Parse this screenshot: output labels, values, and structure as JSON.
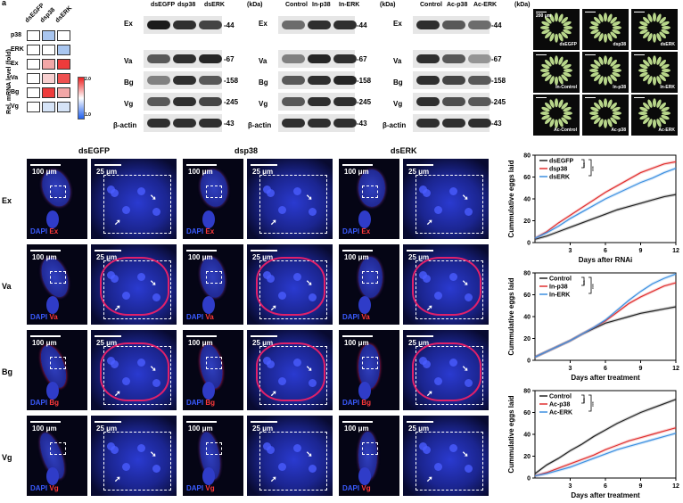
{
  "panel_letter": "a",
  "heatmap": {
    "columns": [
      "dsEGFP",
      "dsp38",
      "dsERK"
    ],
    "rows": [
      "p38",
      "ERK",
      "Ex",
      "Va",
      "Bg",
      "Vg"
    ],
    "ylabel": "Rel. mRNA level (fold)",
    "colorbar_ticks": [
      "2.0",
      "1.0"
    ],
    "colors": {
      "p38": [
        "#ffffff",
        "#a9c6f0",
        "#ffffff"
      ],
      "ERK": [
        "#ffffff",
        "#ffffff",
        "#a9c6f0"
      ],
      "Ex": [
        "#ffffff",
        "#f2a7a7",
        "#ee3b3b"
      ],
      "Va": [
        "#ffffff",
        "#f7cfcf",
        "#ee5050"
      ],
      "Bg": [
        "#ffffff",
        "#ee3b3b",
        "#f2a7a7"
      ],
      "Vg": [
        "#ffffff",
        "#d6e4f7",
        "#d6e4f7"
      ]
    }
  },
  "blots": [
    {
      "columns": [
        "dsEGFP",
        "dsp38",
        "dsERK"
      ],
      "rows": [
        "Ex",
        "Va",
        "Bg",
        "Vg",
        "β-actin"
      ],
      "kda_header": "(kDa)",
      "kda": [
        "44",
        "67",
        "158",
        "245",
        "43"
      ]
    },
    {
      "columns": [
        "Control",
        "In-p38",
        "In-ERK"
      ],
      "rows": [
        "Ex",
        "Va",
        "Bg",
        "Vg",
        "β-actin"
      ],
      "kda_header": "(kDa)",
      "kda": [
        "44",
        "67",
        "158",
        "245",
        "43"
      ]
    },
    {
      "columns": [
        "Control",
        "Ac-p38",
        "Ac-ERK"
      ],
      "rows": [
        "Ex",
        "Va",
        "Bg",
        "Vg",
        "β-actin"
      ],
      "kda_header": "(kDa)",
      "kda": [
        "44",
        "67",
        "158",
        "245",
        "43"
      ]
    }
  ],
  "egg_images": {
    "scale": "200 μm",
    "labels": [
      "dsEGFP",
      "dsp38",
      "dsERK",
      "In-Control",
      "In-p38",
      "In-ERK",
      "Ac-Control",
      "Ac-p38",
      "Ac-ERK"
    ]
  },
  "micro": {
    "columns": [
      "dsEGFP",
      "dsp38",
      "dsERK"
    ],
    "rows": [
      "Ex",
      "Va",
      "Bg",
      "Vg"
    ],
    "scale_overview": "100 μm",
    "scale_zoom": "25 μm",
    "stain_dapi": "DAPI",
    "stain_labels": [
      "Ex",
      "Va",
      "Bg",
      "Vg"
    ]
  },
  "chart_data": [
    {
      "type": "line",
      "xlabel": "Days after RNAi",
      "ylabel": "Cummulative eggs laid",
      "xticks": [
        3,
        6,
        9,
        12
      ],
      "yticks": [
        0,
        20,
        40,
        60,
        80
      ],
      "xlim": [
        0,
        12
      ],
      "ylim": [
        0,
        80
      ],
      "significance": [
        "***",
        "***"
      ],
      "x": [
        0,
        1,
        2,
        3,
        4,
        5,
        6,
        7,
        8,
        9,
        10,
        11,
        12
      ],
      "series": [
        {
          "name": "dsEGFP",
          "color": "#222222",
          "values": [
            3,
            6,
            10,
            14,
            18,
            22,
            26,
            30,
            33,
            36,
            39,
            42,
            44
          ]
        },
        {
          "name": "dsp38",
          "color": "#e03030",
          "values": [
            4,
            10,
            18,
            25,
            32,
            39,
            46,
            52,
            58,
            64,
            68,
            72,
            74
          ]
        },
        {
          "name": "dsERK",
          "color": "#3c8fe0",
          "values": [
            4,
            9,
            15,
            22,
            28,
            34,
            40,
            45,
            50,
            55,
            59,
            64,
            68
          ]
        }
      ]
    },
    {
      "type": "line",
      "xlabel": "Days after treatment",
      "ylabel": "Cummulative eggs laid",
      "xticks": [
        3,
        6,
        9,
        12
      ],
      "yticks": [
        0,
        20,
        40,
        60,
        80
      ],
      "xlim": [
        0,
        12
      ],
      "ylim": [
        0,
        80
      ],
      "significance": [
        "***",
        "***"
      ],
      "x": [
        0,
        1,
        2,
        3,
        4,
        5,
        6,
        7,
        8,
        9,
        10,
        11,
        12
      ],
      "series": [
        {
          "name": "Control",
          "color": "#222222",
          "values": [
            3,
            8,
            13,
            18,
            24,
            29,
            34,
            37,
            40,
            43,
            45,
            47,
            49
          ]
        },
        {
          "name": "In-p38",
          "color": "#e03030",
          "values": [
            3,
            8,
            13,
            18,
            24,
            30,
            36,
            44,
            52,
            58,
            63,
            68,
            71
          ]
        },
        {
          "name": "In-ERK",
          "color": "#3c8fe0",
          "values": [
            3,
            8,
            13,
            18,
            24,
            30,
            37,
            46,
            55,
            63,
            70,
            75,
            79
          ]
        }
      ]
    },
    {
      "type": "line",
      "xlabel": "Days after treatment",
      "ylabel": "Cummulative eggs laid",
      "xticks": [
        3,
        6,
        9,
        12
      ],
      "yticks": [
        0,
        20,
        40,
        60,
        80
      ],
      "xlim": [
        0,
        12
      ],
      "ylim": [
        0,
        80
      ],
      "significance": [
        "***",
        "***"
      ],
      "x": [
        0,
        1,
        2,
        3,
        4,
        5,
        6,
        7,
        8,
        9,
        10,
        11,
        12
      ],
      "series": [
        {
          "name": "Control",
          "color": "#222222",
          "values": [
            4,
            12,
            18,
            25,
            31,
            38,
            44,
            50,
            55,
            60,
            64,
            68,
            72
          ]
        },
        {
          "name": "Ac-p38",
          "color": "#e03030",
          "values": [
            2,
            5,
            9,
            13,
            17,
            21,
            26,
            30,
            34,
            37,
            40,
            43,
            46
          ]
        },
        {
          "name": "Ac-ERK",
          "color": "#3c8fe0",
          "values": [
            2,
            4,
            7,
            10,
            14,
            18,
            22,
            26,
            29,
            32,
            35,
            38,
            41
          ]
        }
      ]
    }
  ]
}
